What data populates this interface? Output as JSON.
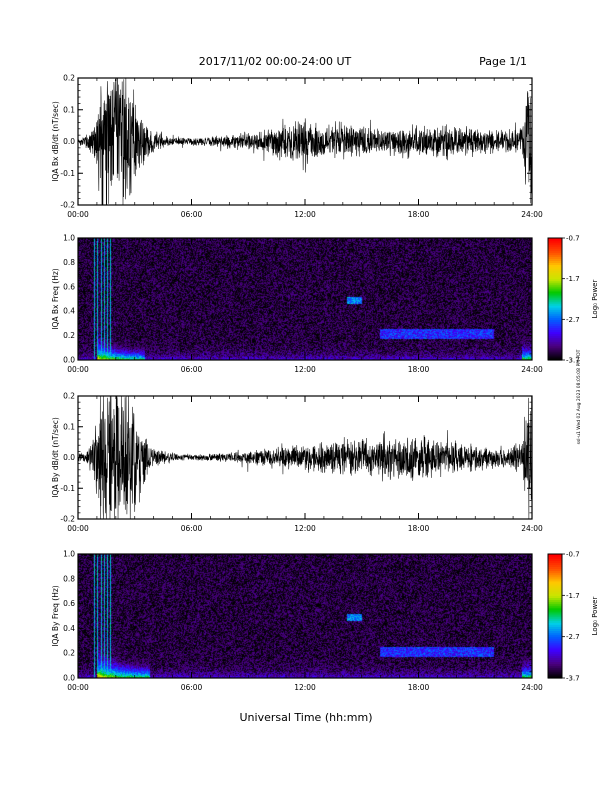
{
  "header": {
    "title": "2017/11/02  00:00-24:00 UT",
    "page_label": "Page 1/1"
  },
  "footer": {
    "x_axis_label": "Universal Time (hh:mm)",
    "side_note": "ssl-u1 Wed 02 Aug 2023 08:05:08 PM PDT"
  },
  "colorbar": {
    "label": "Log₀ Power",
    "ticks": [
      "-0.7",
      "-1.7",
      "-2.7",
      "-3.7"
    ],
    "range": [
      -3.7,
      -0.7
    ],
    "colors": [
      "#000000",
      "#4b007f",
      "#3f00ff",
      "#0060ff",
      "#00d2e6",
      "#00c800",
      "#c8e600",
      "#ffc800",
      "#ff5000",
      "#ff0000"
    ]
  },
  "chart_data": [
    {
      "type": "line",
      "panel": "Bx dB/dt",
      "ylabel": "IQA Bx dB/dt (nT/sec)",
      "xlim": [
        0,
        24
      ],
      "ylim": [
        -0.2,
        0.2
      ],
      "x_ticks": [
        "00:00",
        "06:00",
        "12:00",
        "18:00",
        "24:00"
      ],
      "y_ticks": [
        "0.2",
        "0.1",
        "0.0",
        "-0.1",
        "-0.2"
      ],
      "envelope": {
        "hours": [
          0,
          0.5,
          1.0,
          1.2,
          1.5,
          2.0,
          2.5,
          3.0,
          3.5,
          4.0,
          5.0,
          6.0,
          7.0,
          8.0,
          9.0,
          10.0,
          11.0,
          12.0,
          12.5,
          13.0,
          14.0,
          15.0,
          16.0,
          17.0,
          18.0,
          19.0,
          20.0,
          21.0,
          22.0,
          23.0,
          23.5,
          23.8,
          24.0
        ],
        "amplitude": [
          0.008,
          0.02,
          0.08,
          0.2,
          0.2,
          0.2,
          0.2,
          0.12,
          0.06,
          0.025,
          0.012,
          0.01,
          0.012,
          0.018,
          0.025,
          0.035,
          0.045,
          0.06,
          0.05,
          0.045,
          0.05,
          0.04,
          0.03,
          0.045,
          0.04,
          0.045,
          0.04,
          0.035,
          0.03,
          0.03,
          0.05,
          0.2,
          0.2
        ]
      }
    },
    {
      "type": "heatmap",
      "panel": "Bx Freq",
      "ylabel": "IQA Bx Freq (Hz)",
      "xlim": [
        0,
        24
      ],
      "ylim": [
        0,
        1.0
      ],
      "x_ticks": [
        "00:00",
        "06:00",
        "12:00",
        "18:00",
        "24:00"
      ],
      "y_ticks": [
        "1.0",
        "0.8",
        "0.6",
        "0.4",
        "0.2",
        "0.0"
      ],
      "z_range": [
        -3.7,
        -0.7
      ],
      "features": [
        {
          "name": "storm onset broadband power",
          "hours": [
            1.0,
            3.5
          ],
          "freq_hz": [
            0.0,
            0.2
          ],
          "level": -1.5
        },
        {
          "name": "Pc1 emission",
          "hours": [
            14.2,
            15.0
          ],
          "freq_hz": [
            0.46,
            0.52
          ],
          "level": -2.6
        },
        {
          "name": "Pc1 band",
          "hours": [
            16.0,
            22.0
          ],
          "freq_hz": [
            0.17,
            0.25
          ],
          "level": -2.9
        },
        {
          "name": "end-of-day power",
          "hours": [
            23.5,
            24.0
          ],
          "freq_hz": [
            0.0,
            0.15
          ],
          "level": -2.0
        }
      ]
    },
    {
      "type": "line",
      "panel": "By dB/dt",
      "ylabel": "IQA By dB/dt (nT/sec)",
      "xlim": [
        0,
        24
      ],
      "ylim": [
        -0.2,
        0.2
      ],
      "x_ticks": [
        "00:00",
        "06:00",
        "12:00",
        "18:00",
        "24:00"
      ],
      "y_ticks": [
        "0.2",
        "0.1",
        "0.0",
        "-0.1",
        "-0.2"
      ],
      "envelope": {
        "hours": [
          0,
          0.5,
          1.0,
          1.2,
          1.5,
          2.0,
          2.5,
          3.0,
          3.5,
          4.0,
          5.0,
          6.0,
          7.0,
          8.0,
          9.0,
          10.0,
          11.0,
          12.0,
          12.5,
          13.0,
          14.0,
          15.0,
          16.0,
          17.0,
          18.0,
          19.0,
          20.0,
          21.0,
          22.0,
          23.0,
          23.5,
          23.8,
          24.0
        ],
        "amplitude": [
          0.008,
          0.02,
          0.1,
          0.2,
          0.2,
          0.2,
          0.2,
          0.14,
          0.07,
          0.03,
          0.012,
          0.008,
          0.01,
          0.012,
          0.018,
          0.025,
          0.03,
          0.035,
          0.035,
          0.04,
          0.05,
          0.045,
          0.06,
          0.06,
          0.055,
          0.05,
          0.045,
          0.035,
          0.03,
          0.03,
          0.05,
          0.2,
          0.2
        ]
      }
    },
    {
      "type": "heatmap",
      "panel": "By Freq",
      "ylabel": "IQA By Freq (Hz)",
      "xlim": [
        0,
        24
      ],
      "ylim": [
        0,
        1.0
      ],
      "x_ticks": [
        "00:00",
        "06:00",
        "12:00",
        "18:00",
        "24:00"
      ],
      "y_ticks": [
        "1.0",
        "0.8",
        "0.6",
        "0.4",
        "0.2",
        "0.0"
      ],
      "z_range": [
        -3.7,
        -0.7
      ],
      "features": [
        {
          "name": "storm onset broadband power",
          "hours": [
            1.0,
            3.8
          ],
          "freq_hz": [
            0.0,
            0.22
          ],
          "level": -1.4
        },
        {
          "name": "Pc1 emission",
          "hours": [
            14.2,
            15.0
          ],
          "freq_hz": [
            0.46,
            0.52
          ],
          "level": -2.6
        },
        {
          "name": "Pc1 band",
          "hours": [
            16.0,
            22.0
          ],
          "freq_hz": [
            0.17,
            0.25
          ],
          "level": -2.9
        },
        {
          "name": "end-of-day power",
          "hours": [
            23.5,
            24.0
          ],
          "freq_hz": [
            0.0,
            0.15
          ],
          "level": -2.0
        }
      ]
    }
  ]
}
